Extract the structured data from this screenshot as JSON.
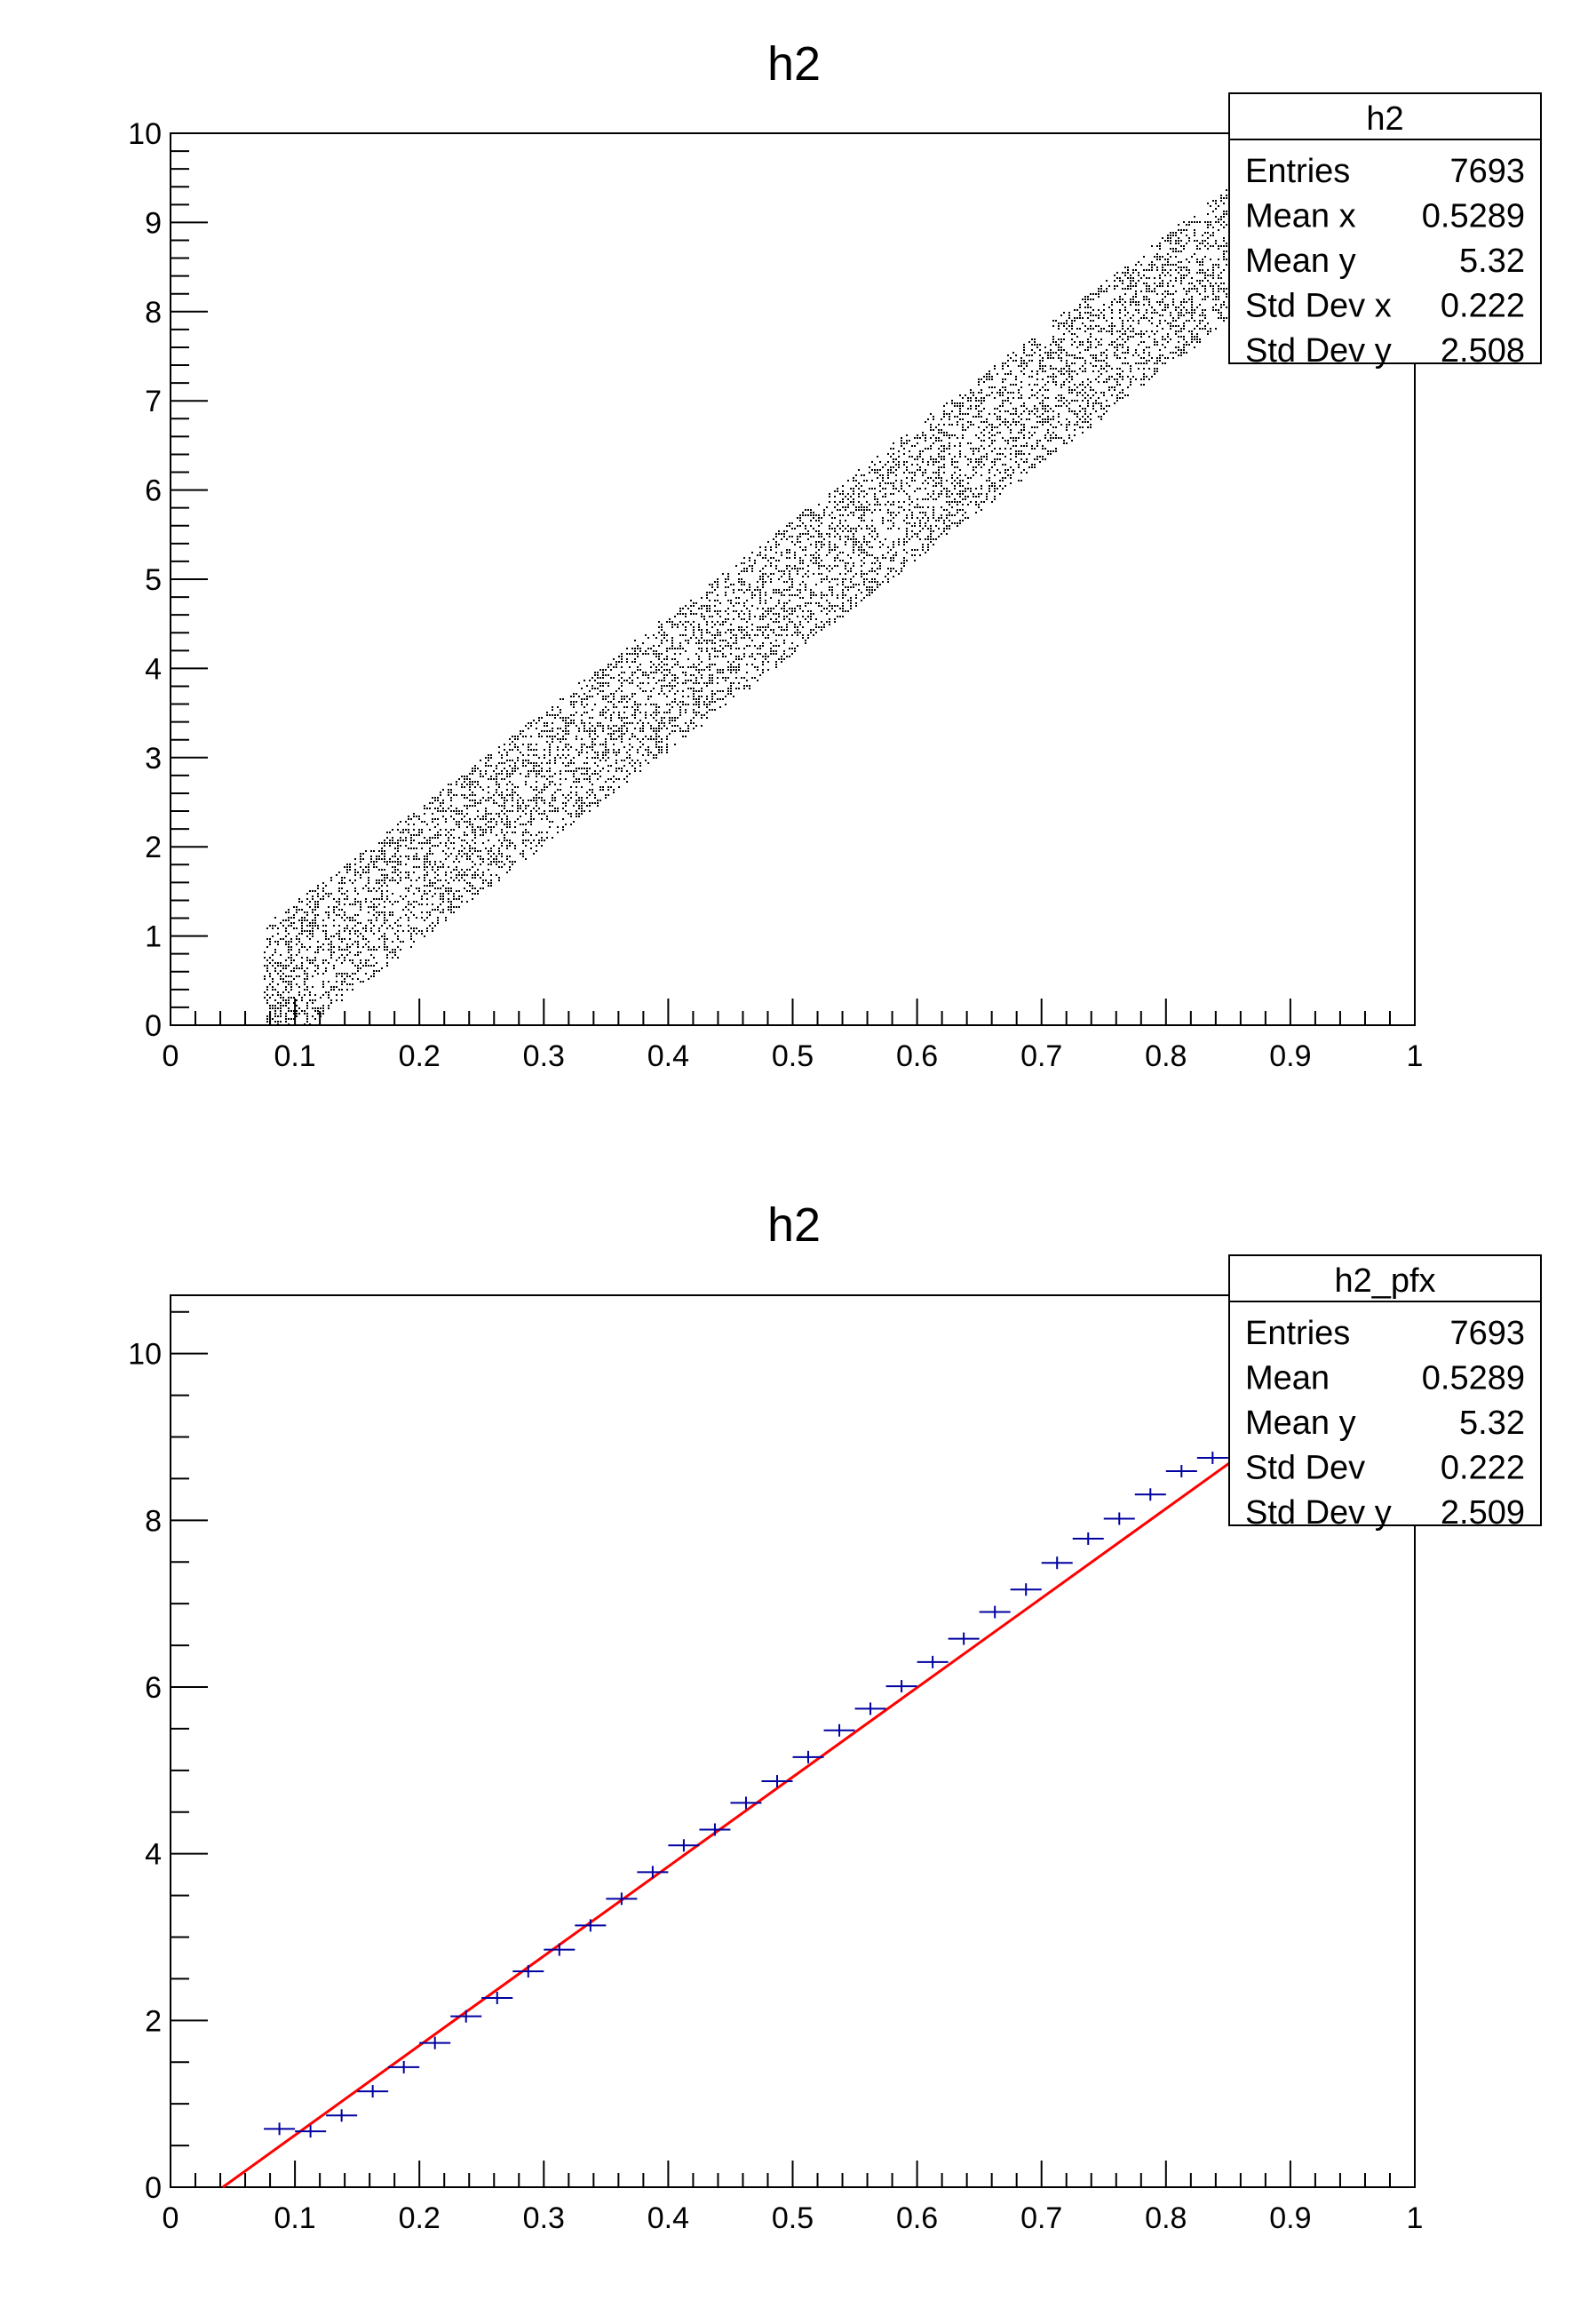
{
  "chart_data": [
    {
      "type": "scatter",
      "title": "h2",
      "xlim": [
        0,
        1
      ],
      "ylim": [
        0,
        10
      ],
      "x_ticks": [
        "0",
        "0.1",
        "0.2",
        "0.3",
        "0.4",
        "0.5",
        "0.6",
        "0.7",
        "0.8",
        "0.9",
        "1"
      ],
      "y_ticks": [
        "0",
        "1",
        "2",
        "3",
        "4",
        "5",
        "6",
        "7",
        "8",
        "9",
        "10"
      ],
      "point_color": "#000000",
      "stats": {
        "name": "h2",
        "rows": [
          {
            "label": "Entries",
            "value": "7693"
          },
          {
            "label": "Mean x",
            "value": "0.5289"
          },
          {
            "label": "Mean y",
            "value": "5.32"
          },
          {
            "label": "Std Dev x",
            "value": "0.222"
          },
          {
            "label": "Std Dev y",
            "value": "2.508"
          }
        ]
      }
    },
    {
      "type": "line",
      "title": "h2",
      "xlim": [
        0,
        1
      ],
      "ylim": [
        0,
        10.7
      ],
      "x_ticks": [
        "0",
        "0.1",
        "0.2",
        "0.3",
        "0.4",
        "0.5",
        "0.6",
        "0.7",
        "0.8",
        "0.9",
        "1"
      ],
      "y_ticks": [
        "0",
        "2",
        "4",
        "6",
        "8",
        "10"
      ],
      "profile": {
        "color": "#0000a0",
        "bin_half_width": 0.0125,
        "x": [
          0.0875,
          0.1125,
          0.1375,
          0.1625,
          0.1875,
          0.2125,
          0.2375,
          0.2625,
          0.2875,
          0.3125,
          0.3375,
          0.3625,
          0.3875,
          0.4125,
          0.4375,
          0.4625,
          0.4875,
          0.5125,
          0.5375,
          0.5625,
          0.5875,
          0.6125,
          0.6375,
          0.6625,
          0.6875,
          0.7125,
          0.7375,
          0.7625,
          0.7875,
          0.8125,
          0.8375
        ],
        "y": [
          0.7,
          0.67,
          0.86,
          1.15,
          1.44,
          1.73,
          2.05,
          2.27,
          2.59,
          2.85,
          3.14,
          3.46,
          3.78,
          4.1,
          4.29,
          4.61,
          4.87,
          5.16,
          5.48,
          5.74,
          6.01,
          6.3,
          6.58,
          6.9,
          7.17,
          7.49,
          7.78,
          8.02,
          8.31,
          8.59,
          8.75
        ]
      },
      "fit_line": {
        "color": "#ff0000",
        "x": [
          0.042,
          0.2,
          0.5,
          0.855
        ],
        "y": [
          0.0,
          1.7,
          4.92,
          8.73
        ]
      },
      "stats": {
        "name": "h2_pfx",
        "rows": [
          {
            "label": "Entries",
            "value": "7693"
          },
          {
            "label": "Mean",
            "value": "0.5289"
          },
          {
            "label": "Mean y",
            "value": "5.32"
          },
          {
            "label": "Std Dev",
            "value": "0.222"
          },
          {
            "label": "Std Dev y",
            "value": "2.509"
          }
        ]
      }
    }
  ]
}
